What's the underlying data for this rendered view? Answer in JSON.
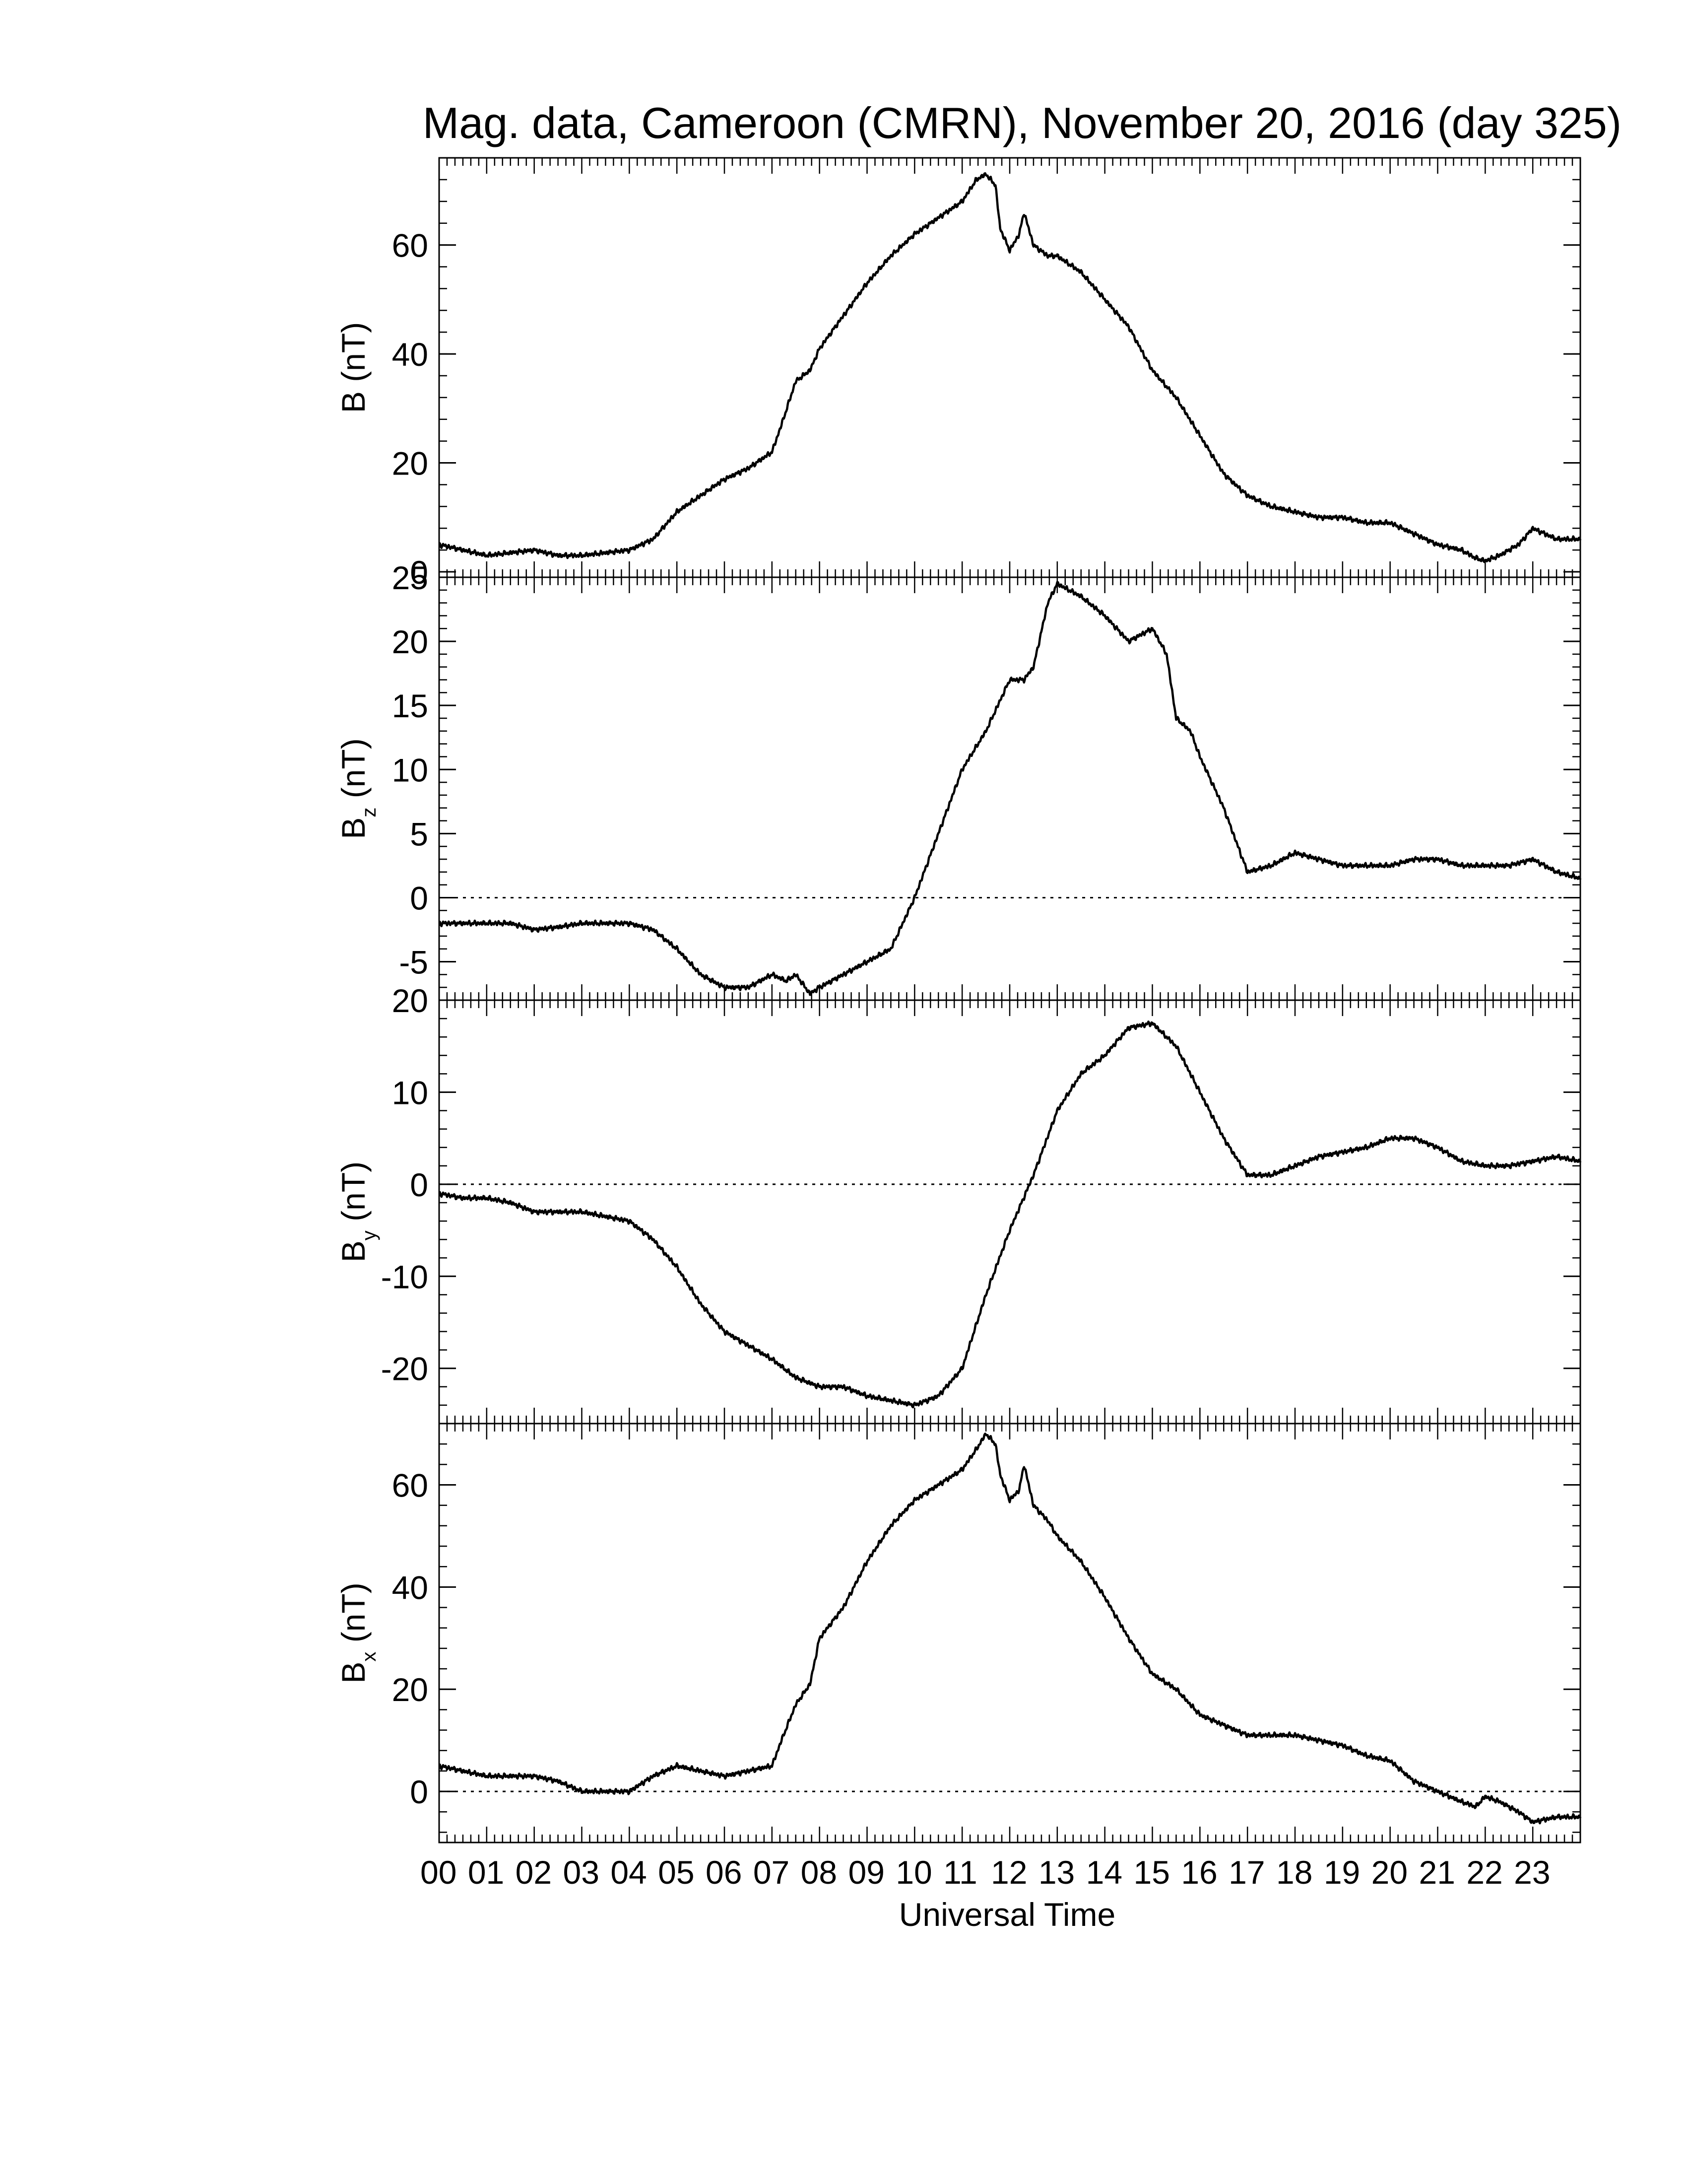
{
  "title": "Mag. data, Cameroon (CMRN), November 20, 2016 (day 325)",
  "x_axis": {
    "label": "Universal Time",
    "range_hours": [
      0,
      24
    ],
    "tick_labels": [
      "00",
      "01",
      "02",
      "03",
      "04",
      "05",
      "06",
      "07",
      "08",
      "09",
      "10",
      "11",
      "12",
      "13",
      "14",
      "15",
      "16",
      "17",
      "18",
      "19",
      "20",
      "21",
      "22",
      "23"
    ]
  },
  "line_color": "#000000",
  "chart_data": [
    {
      "type": "line",
      "name": "B",
      "ylabel_main": "B",
      "ylabel_sub": "",
      "ylabel_unit": "(nT)",
      "ylim": [
        -1,
        76
      ],
      "yticks": [
        0,
        20,
        40,
        60
      ],
      "zero_line": false,
      "x_hours": [
        0,
        0.5,
        1,
        1.5,
        2,
        2.5,
        3,
        3.5,
        4,
        4.5,
        5,
        5.5,
        6,
        6.5,
        7,
        7.2,
        7.5,
        7.8,
        8,
        8.5,
        9,
        9.5,
        10,
        10.5,
        11,
        11.3,
        11.5,
        11.7,
        11.8,
        12,
        12.2,
        12.3,
        12.5,
        12.8,
        13,
        13.5,
        14,
        14.5,
        15,
        15.5,
        16,
        16.5,
        17,
        17.5,
        18,
        18.5,
        19,
        19.5,
        20,
        20.5,
        21,
        21.5,
        21.8,
        22,
        22.3,
        22.7,
        23,
        23.5,
        24
      ],
      "values": [
        5,
        4,
        3,
        3.5,
        4,
        3,
        3,
        3.5,
        4,
        6,
        11,
        14,
        17,
        19,
        22,
        27,
        35,
        37,
        41,
        47,
        53,
        58,
        62,
        65,
        68,
        72,
        73,
        71,
        63,
        59,
        62,
        66,
        60,
        58,
        58,
        55,
        50,
        45,
        37,
        32,
        25,
        18,
        14,
        12,
        11,
        10,
        10,
        9,
        9,
        7,
        5,
        4,
        2.5,
        2,
        3,
        5,
        8,
        6,
        6
      ]
    },
    {
      "type": "line",
      "name": "Bz",
      "ylabel_main": "B",
      "ylabel_sub": "z",
      "ylabel_unit": "(nT)",
      "ylim": [
        -8,
        25
      ],
      "yticks": [
        -5,
        0,
        5,
        10,
        15,
        20,
        25
      ],
      "zero_line": true,
      "x_hours": [
        0,
        0.5,
        1,
        1.5,
        2,
        2.5,
        3,
        3.5,
        4,
        4.5,
        5,
        5.5,
        6,
        6.5,
        7,
        7.3,
        7.5,
        7.8,
        8,
        8.5,
        9,
        9.5,
        10,
        10.5,
        11,
        11.5,
        12,
        12.3,
        12.5,
        12.8,
        13,
        13.5,
        14,
        14.5,
        15,
        15.3,
        15.5,
        15.8,
        16,
        16.5,
        17,
        17.5,
        18,
        18.5,
        19,
        19.5,
        20,
        20.5,
        21,
        21.5,
        22,
        22.5,
        23,
        23.5,
        24
      ],
      "values": [
        -2,
        -2,
        -2,
        -2,
        -2.5,
        -2.3,
        -2,
        -2,
        -2,
        -2.5,
        -4,
        -6,
        -7,
        -7,
        -6,
        -6.5,
        -6,
        -7.5,
        -7,
        -6,
        -5,
        -4,
        0,
        5,
        10,
        13,
        17,
        17,
        18,
        23,
        24.5,
        23.5,
        22,
        20,
        21,
        19,
        14,
        13,
        11,
        7,
        2,
        2.5,
        3.5,
        3,
        2.5,
        2.5,
        2.5,
        3,
        3,
        2.5,
        2.5,
        2.5,
        3,
        2,
        1.5
      ]
    },
    {
      "type": "line",
      "name": "By",
      "ylabel_main": "B",
      "ylabel_sub": "y",
      "ylabel_unit": "(nT)",
      "ylim": [
        -26,
        20
      ],
      "yticks": [
        -20,
        -10,
        0,
        10,
        20
      ],
      "zero_line": true,
      "x_hours": [
        0,
        0.5,
        1,
        1.5,
        2,
        2.5,
        3,
        3.5,
        4,
        4.5,
        5,
        5.5,
        6,
        6.5,
        7,
        7.5,
        8,
        8.5,
        9,
        9.5,
        10,
        10.5,
        11,
        11.5,
        12,
        12.5,
        13,
        13.5,
        14,
        14.5,
        15,
        15.5,
        16,
        16.5,
        17,
        17.5,
        18,
        18.5,
        19,
        19.5,
        20,
        20.5,
        21,
        21.5,
        22,
        22.5,
        23,
        23.5,
        24
      ],
      "values": [
        -1,
        -1.5,
        -1.5,
        -2,
        -3,
        -3,
        -3,
        -3.5,
        -4,
        -6,
        -9,
        -13,
        -16,
        -17.5,
        -19,
        -21,
        -22,
        -22,
        -23,
        -23.5,
        -24,
        -23,
        -20,
        -12,
        -5,
        1,
        8,
        12,
        14,
        17,
        17.5,
        15,
        10,
        5,
        1,
        1,
        2,
        3,
        3.5,
        4,
        5,
        5,
        4,
        2.5,
        2,
        2,
        2.5,
        3,
        2.5
      ]
    },
    {
      "type": "line",
      "name": "Bx",
      "ylabel_main": "B",
      "ylabel_sub": "x",
      "ylabel_unit": "(nT)",
      "ylim": [
        -10,
        72
      ],
      "yticks": [
        0,
        20,
        40,
        60
      ],
      "zero_line": true,
      "x_hours": [
        0,
        0.5,
        1,
        1.5,
        2,
        2.5,
        3,
        3.5,
        4,
        4.5,
        5,
        5.5,
        6,
        6.5,
        7,
        7.2,
        7.5,
        7.8,
        8,
        8.5,
        9,
        9.5,
        10,
        10.5,
        11,
        11.3,
        11.5,
        11.7,
        11.8,
        12,
        12.2,
        12.3,
        12.5,
        12.8,
        13,
        13.5,
        14,
        14.5,
        15,
        15.5,
        16,
        16.5,
        17,
        17.5,
        18,
        18.5,
        19,
        19.5,
        20,
        20.5,
        21,
        21.5,
        21.8,
        22,
        22.3,
        22.7,
        23,
        23.5,
        24
      ],
      "values": [
        5,
        4,
        3,
        3,
        3,
        2,
        0,
        0,
        0,
        3,
        5,
        4,
        3,
        4,
        5,
        10,
        17,
        21,
        30,
        36,
        45,
        52,
        57,
        60,
        63,
        67,
        70,
        68,
        62,
        57,
        59,
        64,
        56,
        53,
        50,
        45,
        38,
        30,
        23,
        20,
        15,
        13,
        11,
        11,
        11,
        10,
        9,
        7,
        6,
        2,
        0,
        -2,
        -3,
        -1,
        -2,
        -4,
        -6,
        -5,
        -5
      ]
    }
  ]
}
